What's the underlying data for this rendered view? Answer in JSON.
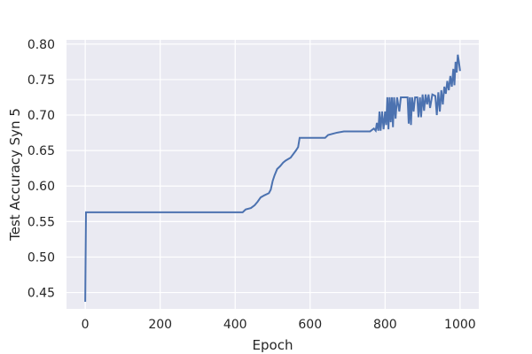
{
  "chart_data": {
    "type": "line",
    "title": "",
    "xlabel": "Epoch",
    "ylabel": "Test Accuracy Syn 5",
    "xlim": [
      -50,
      1050
    ],
    "ylim": [
      0.427,
      0.806
    ],
    "x_ticks": [
      0,
      200,
      400,
      600,
      800,
      1000
    ],
    "x_tick_labels": [
      "0",
      "200",
      "400",
      "600",
      "800",
      "1000"
    ],
    "y_ticks": [
      0.45,
      0.5,
      0.55,
      0.6,
      0.65,
      0.7,
      0.75,
      0.8
    ],
    "y_tick_labels": [
      "0.45",
      "0.50",
      "0.55",
      "0.60",
      "0.65",
      "0.70",
      "0.75",
      "0.80"
    ],
    "grid": true,
    "background_color": "#eaeaf2",
    "grid_color": "#ffffff",
    "series": [
      {
        "color": "#4c72b0",
        "points": [
          [
            0,
            0.437
          ],
          [
            2,
            0.563
          ],
          [
            420,
            0.563
          ],
          [
            428,
            0.567
          ],
          [
            442,
            0.569
          ],
          [
            452,
            0.573
          ],
          [
            460,
            0.578
          ],
          [
            468,
            0.584
          ],
          [
            478,
            0.587
          ],
          [
            490,
            0.59
          ],
          [
            495,
            0.595
          ],
          [
            500,
            0.607
          ],
          [
            505,
            0.615
          ],
          [
            512,
            0.624
          ],
          [
            520,
            0.628
          ],
          [
            528,
            0.633
          ],
          [
            535,
            0.636
          ],
          [
            548,
            0.64
          ],
          [
            555,
            0.645
          ],
          [
            562,
            0.65
          ],
          [
            568,
            0.655
          ],
          [
            572,
            0.668
          ],
          [
            640,
            0.668
          ],
          [
            648,
            0.672
          ],
          [
            670,
            0.675
          ],
          [
            690,
            0.677
          ],
          [
            760,
            0.677
          ],
          [
            770,
            0.681
          ],
          [
            775,
            0.678
          ],
          [
            778,
            0.689
          ],
          [
            782,
            0.678
          ],
          [
            785,
            0.705
          ],
          [
            788,
            0.678
          ],
          [
            792,
            0.705
          ],
          [
            796,
            0.68
          ],
          [
            800,
            0.705
          ],
          [
            803,
            0.686
          ],
          [
            806,
            0.725
          ],
          [
            809,
            0.68
          ],
          [
            812,
            0.725
          ],
          [
            815,
            0.69
          ],
          [
            818,
            0.725
          ],
          [
            821,
            0.683
          ],
          [
            824,
            0.725
          ],
          [
            828,
            0.695
          ],
          [
            832,
            0.725
          ],
          [
            838,
            0.705
          ],
          [
            842,
            0.725
          ],
          [
            860,
            0.725
          ],
          [
            863,
            0.688
          ],
          [
            866,
            0.725
          ],
          [
            869,
            0.686
          ],
          [
            872,
            0.725
          ],
          [
            876,
            0.705
          ],
          [
            880,
            0.725
          ],
          [
            886,
            0.725
          ],
          [
            889,
            0.697
          ],
          [
            893,
            0.725
          ],
          [
            896,
            0.697
          ],
          [
            900,
            0.729
          ],
          [
            904,
            0.706
          ],
          [
            908,
            0.729
          ],
          [
            912,
            0.715
          ],
          [
            916,
            0.729
          ],
          [
            920,
            0.71
          ],
          [
            926,
            0.729
          ],
          [
            934,
            0.727
          ],
          [
            938,
            0.7
          ],
          [
            942,
            0.732
          ],
          [
            946,
            0.705
          ],
          [
            950,
            0.735
          ],
          [
            954,
            0.715
          ],
          [
            958,
            0.74
          ],
          [
            962,
            0.73
          ],
          [
            966,
            0.748
          ],
          [
            970,
            0.735
          ],
          [
            974,
            0.755
          ],
          [
            978,
            0.74
          ],
          [
            982,
            0.765
          ],
          [
            985,
            0.742
          ],
          [
            988,
            0.775
          ],
          [
            991,
            0.76
          ],
          [
            994,
            0.785
          ],
          [
            997,
            0.775
          ],
          [
            1000,
            0.762
          ]
        ]
      }
    ]
  }
}
